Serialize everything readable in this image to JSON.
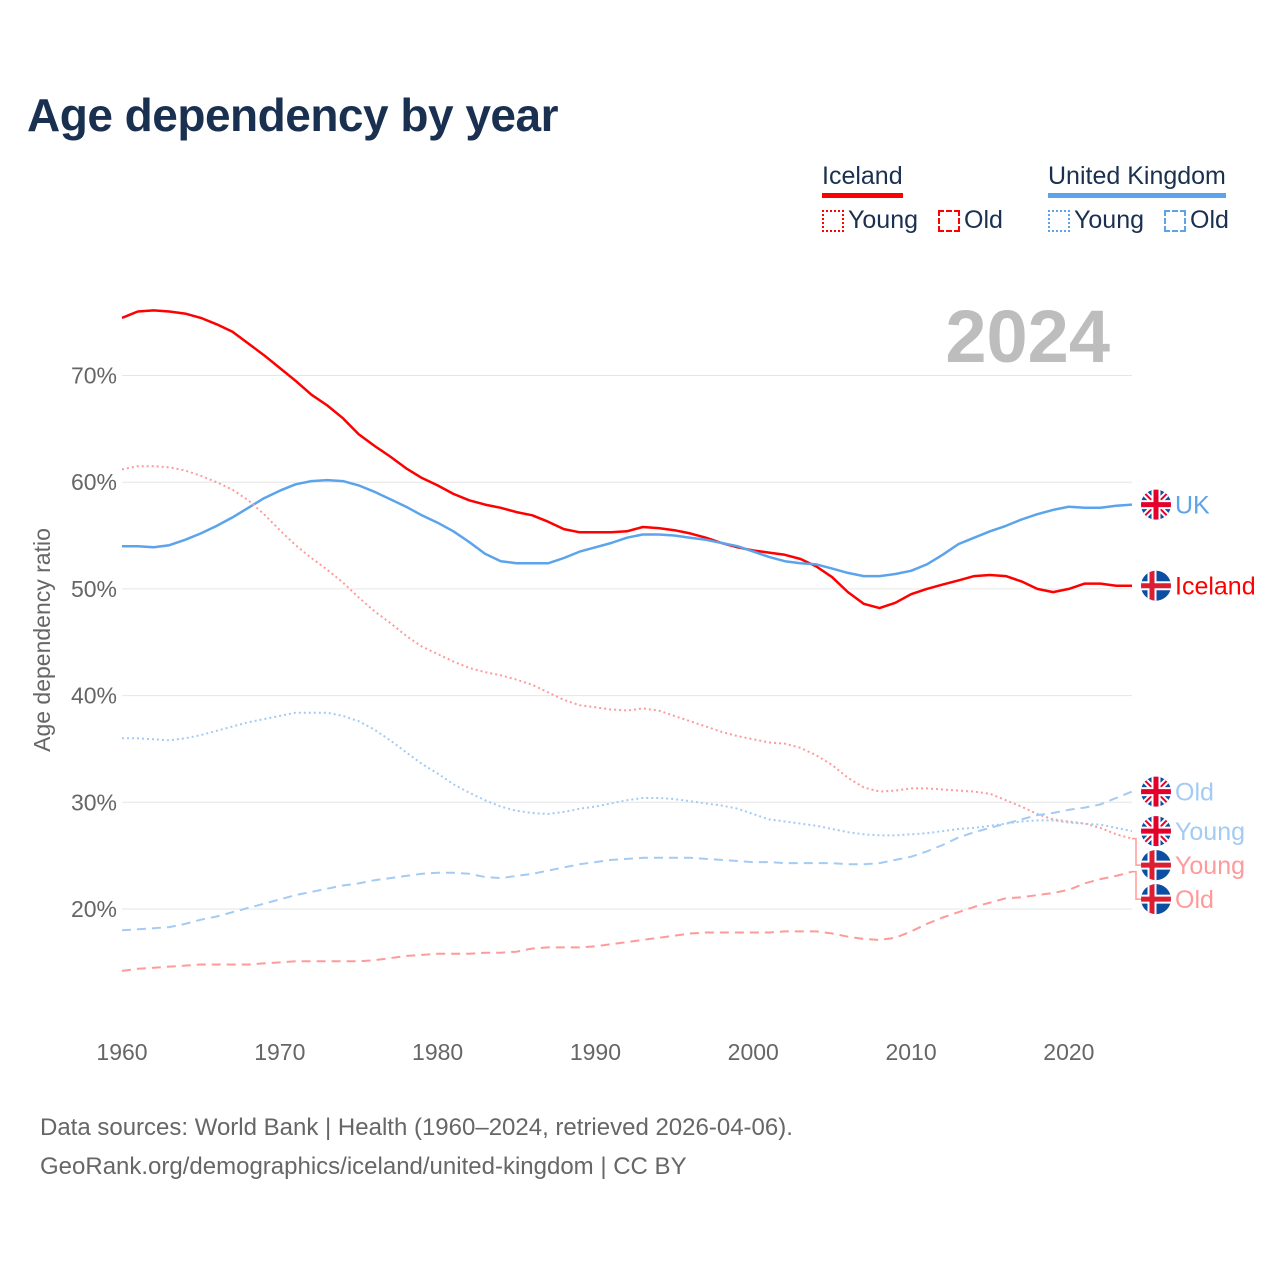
{
  "title": "Age dependency by year",
  "legend": {
    "groups": [
      {
        "country": "Iceland",
        "color": "#ff0000",
        "items": [
          "Young",
          "Old"
        ]
      },
      {
        "country": "United Kingdom",
        "color": "#5ba4ec",
        "items": [
          "Young",
          "Old"
        ]
      }
    ]
  },
  "source": {
    "line1": "Data sources: World Bank | Health (1960–2024, retrieved 2026-04-06).",
    "line2": "GeoRank.org/demographics/iceland/united-kingdom | CC BY"
  },
  "chart_data": {
    "type": "line",
    "title": "Age dependency by year",
    "year_watermark": "2024",
    "xlabel": "",
    "ylabel": "Age dependency ratio",
    "xlim": [
      1960,
      2024
    ],
    "ylim": [
      10.5,
      76.5
    ],
    "x_ticks": [
      "1960",
      "1970",
      "1980",
      "1990",
      "2000",
      "2010",
      "2020"
    ],
    "y_ticks": [
      "20%",
      "30%",
      "40%",
      "50%",
      "60%",
      "70%"
    ],
    "grid": true,
    "series": [
      {
        "name": "Iceland",
        "label": "Iceland",
        "flag": "iceland",
        "color": "#ff0000",
        "style": "solid",
        "start": 1960,
        "values": [
          75.4,
          76.0,
          76.1,
          76.0,
          75.8,
          75.4,
          74.8,
          74.1,
          73.0,
          71.9,
          70.7,
          69.5,
          68.2,
          67.2,
          66.0,
          64.5,
          63.4,
          62.4,
          61.3,
          60.4,
          59.7,
          58.9,
          58.3,
          57.9,
          57.6,
          57.2,
          56.9,
          56.3,
          55.6,
          55.3,
          55.3,
          55.3,
          55.4,
          55.8,
          55.7,
          55.5,
          55.2,
          54.8,
          54.3,
          53.9,
          53.6,
          53.4,
          53.2,
          52.8,
          52.1,
          51.1,
          49.7,
          48.6,
          48.2,
          48.7,
          49.5,
          50.0,
          50.4,
          50.8,
          51.2,
          51.3,
          51.2,
          50.7,
          50.0,
          49.7,
          50.0,
          50.5,
          50.5,
          50.3,
          50.3
        ]
      },
      {
        "name": "United Kingdom",
        "label": "UK",
        "flag": "uk",
        "color": "#5ba4ec",
        "style": "solid",
        "start": 1960,
        "values": [
          54.0,
          54.0,
          53.9,
          54.1,
          54.6,
          55.2,
          55.9,
          56.7,
          57.6,
          58.5,
          59.2,
          59.8,
          60.1,
          60.2,
          60.1,
          59.7,
          59.1,
          58.4,
          57.7,
          56.9,
          56.2,
          55.4,
          54.4,
          53.3,
          52.6,
          52.4,
          52.4,
          52.4,
          52.9,
          53.5,
          53.9,
          54.3,
          54.8,
          55.1,
          55.1,
          55.0,
          54.8,
          54.6,
          54.3,
          54.0,
          53.5,
          53.0,
          52.6,
          52.4,
          52.3,
          51.9,
          51.5,
          51.2,
          51.2,
          51.4,
          51.7,
          52.3,
          53.2,
          54.2,
          54.8,
          55.4,
          55.9,
          56.5,
          57.0,
          57.4,
          57.7,
          57.6,
          57.6,
          57.8,
          57.9
        ]
      },
      {
        "name": "Iceland Young",
        "label": "Young",
        "flag": "iceland",
        "color": "#ff9a9a",
        "style": "dotted",
        "start": 1960,
        "values": [
          61.2,
          61.5,
          61.5,
          61.4,
          61.1,
          60.6,
          60.0,
          59.3,
          58.3,
          57.0,
          55.5,
          54.1,
          52.9,
          51.8,
          50.6,
          49.2,
          47.9,
          46.8,
          45.6,
          44.6,
          43.9,
          43.2,
          42.6,
          42.2,
          41.9,
          41.5,
          41.0,
          40.3,
          39.6,
          39.1,
          38.9,
          38.7,
          38.6,
          38.8,
          38.6,
          38.1,
          37.6,
          37.1,
          36.6,
          36.2,
          35.9,
          35.6,
          35.5,
          35.1,
          34.4,
          33.5,
          32.3,
          31.4,
          31.0,
          31.1,
          31.3,
          31.3,
          31.2,
          31.1,
          31.0,
          30.8,
          30.2,
          29.6,
          28.9,
          28.4,
          28.2,
          28.0,
          27.6,
          27.0,
          26.6
        ]
      },
      {
        "name": "Iceland Old",
        "label": "Old",
        "flag": "iceland",
        "color": "#ff9a9a",
        "style": "dashed",
        "start": 1960,
        "values": [
          14.2,
          14.4,
          14.5,
          14.6,
          14.7,
          14.8,
          14.8,
          14.8,
          14.8,
          14.9,
          15.0,
          15.1,
          15.1,
          15.1,
          15.1,
          15.1,
          15.2,
          15.4,
          15.6,
          15.7,
          15.8,
          15.8,
          15.8,
          15.9,
          15.9,
          16.0,
          16.3,
          16.4,
          16.4,
          16.4,
          16.5,
          16.7,
          16.9,
          17.1,
          17.3,
          17.5,
          17.7,
          17.8,
          17.8,
          17.8,
          17.8,
          17.8,
          17.9,
          17.9,
          17.9,
          17.7,
          17.4,
          17.2,
          17.1,
          17.3,
          17.9,
          18.6,
          19.2,
          19.7,
          20.2,
          20.6,
          21.0,
          21.1,
          21.3,
          21.5,
          21.8,
          22.4,
          22.8,
          23.1,
          23.5
        ]
      },
      {
        "name": "United Kingdom Young",
        "label": "Young",
        "flag": "uk",
        "color": "#a3cbf3",
        "style": "dotted",
        "start": 1960,
        "values": [
          36.0,
          36.0,
          35.9,
          35.8,
          36.0,
          36.3,
          36.7,
          37.1,
          37.5,
          37.8,
          38.1,
          38.4,
          38.4,
          38.4,
          38.1,
          37.6,
          36.8,
          35.8,
          34.7,
          33.6,
          32.7,
          31.7,
          30.9,
          30.2,
          29.6,
          29.2,
          29.0,
          28.9,
          29.1,
          29.4,
          29.6,
          29.9,
          30.2,
          30.4,
          30.4,
          30.3,
          30.1,
          29.9,
          29.7,
          29.4,
          28.9,
          28.4,
          28.2,
          28.0,
          27.8,
          27.5,
          27.2,
          27.0,
          26.9,
          26.9,
          27.0,
          27.1,
          27.3,
          27.5,
          27.6,
          27.8,
          28.0,
          28.2,
          28.3,
          28.3,
          28.1,
          28.0,
          27.9,
          27.6,
          27.3
        ]
      },
      {
        "name": "United Kingdom Old",
        "label": "Old",
        "flag": "uk",
        "color": "#a3cbf3",
        "style": "dashed",
        "start": 1960,
        "values": [
          18.0,
          18.1,
          18.2,
          18.3,
          18.6,
          19.0,
          19.3,
          19.7,
          20.1,
          20.5,
          20.9,
          21.3,
          21.6,
          21.9,
          22.2,
          22.4,
          22.7,
          22.9,
          23.1,
          23.3,
          23.4,
          23.4,
          23.3,
          23.0,
          22.9,
          23.1,
          23.3,
          23.6,
          23.9,
          24.2,
          24.4,
          24.6,
          24.7,
          24.8,
          24.8,
          24.8,
          24.8,
          24.7,
          24.6,
          24.5,
          24.4,
          24.4,
          24.3,
          24.3,
          24.3,
          24.3,
          24.2,
          24.2,
          24.3,
          24.6,
          24.9,
          25.4,
          26.0,
          26.7,
          27.2,
          27.6,
          28.0,
          28.4,
          28.8,
          29.0,
          29.3,
          29.5,
          29.8,
          30.4,
          31.0
        ]
      }
    ]
  }
}
